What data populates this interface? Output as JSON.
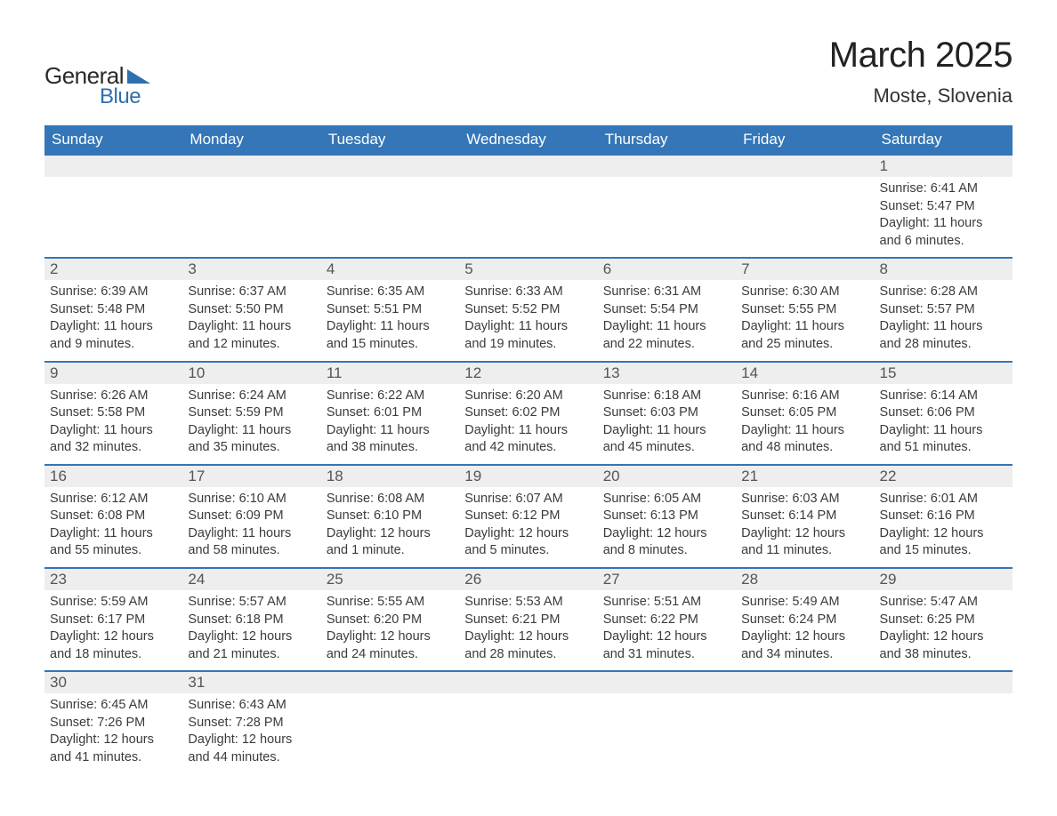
{
  "logo": {
    "text1": "General",
    "text2": "Blue"
  },
  "title": "March 2025",
  "location": "Moste, Slovenia",
  "header_bg": "#3476b7",
  "header_fg": "#ffffff",
  "daynum_bg": "#eeeeee",
  "border_color": "#3476b7",
  "text_color": "#3b3b3b",
  "font_family": "Arial, Helvetica, sans-serif",
  "day_headers": [
    "Sunday",
    "Monday",
    "Tuesday",
    "Wednesday",
    "Thursday",
    "Friday",
    "Saturday"
  ],
  "weeks": [
    [
      {
        "blank": true
      },
      {
        "blank": true
      },
      {
        "blank": true
      },
      {
        "blank": true
      },
      {
        "blank": true
      },
      {
        "blank": true
      },
      {
        "day": "1",
        "sunrise": "6:41 AM",
        "sunset": "5:47 PM",
        "daylight": "11 hours and 6 minutes."
      }
    ],
    [
      {
        "day": "2",
        "sunrise": "6:39 AM",
        "sunset": "5:48 PM",
        "daylight": "11 hours and 9 minutes."
      },
      {
        "day": "3",
        "sunrise": "6:37 AM",
        "sunset": "5:50 PM",
        "daylight": "11 hours and 12 minutes."
      },
      {
        "day": "4",
        "sunrise": "6:35 AM",
        "sunset": "5:51 PM",
        "daylight": "11 hours and 15 minutes."
      },
      {
        "day": "5",
        "sunrise": "6:33 AM",
        "sunset": "5:52 PM",
        "daylight": "11 hours and 19 minutes."
      },
      {
        "day": "6",
        "sunrise": "6:31 AM",
        "sunset": "5:54 PM",
        "daylight": "11 hours and 22 minutes."
      },
      {
        "day": "7",
        "sunrise": "6:30 AM",
        "sunset": "5:55 PM",
        "daylight": "11 hours and 25 minutes."
      },
      {
        "day": "8",
        "sunrise": "6:28 AM",
        "sunset": "5:57 PM",
        "daylight": "11 hours and 28 minutes."
      }
    ],
    [
      {
        "day": "9",
        "sunrise": "6:26 AM",
        "sunset": "5:58 PM",
        "daylight": "11 hours and 32 minutes."
      },
      {
        "day": "10",
        "sunrise": "6:24 AM",
        "sunset": "5:59 PM",
        "daylight": "11 hours and 35 minutes."
      },
      {
        "day": "11",
        "sunrise": "6:22 AM",
        "sunset": "6:01 PM",
        "daylight": "11 hours and 38 minutes."
      },
      {
        "day": "12",
        "sunrise": "6:20 AM",
        "sunset": "6:02 PM",
        "daylight": "11 hours and 42 minutes."
      },
      {
        "day": "13",
        "sunrise": "6:18 AM",
        "sunset": "6:03 PM",
        "daylight": "11 hours and 45 minutes."
      },
      {
        "day": "14",
        "sunrise": "6:16 AM",
        "sunset": "6:05 PM",
        "daylight": "11 hours and 48 minutes."
      },
      {
        "day": "15",
        "sunrise": "6:14 AM",
        "sunset": "6:06 PM",
        "daylight": "11 hours and 51 minutes."
      }
    ],
    [
      {
        "day": "16",
        "sunrise": "6:12 AM",
        "sunset": "6:08 PM",
        "daylight": "11 hours and 55 minutes."
      },
      {
        "day": "17",
        "sunrise": "6:10 AM",
        "sunset": "6:09 PM",
        "daylight": "11 hours and 58 minutes."
      },
      {
        "day": "18",
        "sunrise": "6:08 AM",
        "sunset": "6:10 PM",
        "daylight": "12 hours and 1 minute."
      },
      {
        "day": "19",
        "sunrise": "6:07 AM",
        "sunset": "6:12 PM",
        "daylight": "12 hours and 5 minutes."
      },
      {
        "day": "20",
        "sunrise": "6:05 AM",
        "sunset": "6:13 PM",
        "daylight": "12 hours and 8 minutes."
      },
      {
        "day": "21",
        "sunrise": "6:03 AM",
        "sunset": "6:14 PM",
        "daylight": "12 hours and 11 minutes."
      },
      {
        "day": "22",
        "sunrise": "6:01 AM",
        "sunset": "6:16 PM",
        "daylight": "12 hours and 15 minutes."
      }
    ],
    [
      {
        "day": "23",
        "sunrise": "5:59 AM",
        "sunset": "6:17 PM",
        "daylight": "12 hours and 18 minutes."
      },
      {
        "day": "24",
        "sunrise": "5:57 AM",
        "sunset": "6:18 PM",
        "daylight": "12 hours and 21 minutes."
      },
      {
        "day": "25",
        "sunrise": "5:55 AM",
        "sunset": "6:20 PM",
        "daylight": "12 hours and 24 minutes."
      },
      {
        "day": "26",
        "sunrise": "5:53 AM",
        "sunset": "6:21 PM",
        "daylight": "12 hours and 28 minutes."
      },
      {
        "day": "27",
        "sunrise": "5:51 AM",
        "sunset": "6:22 PM",
        "daylight": "12 hours and 31 minutes."
      },
      {
        "day": "28",
        "sunrise": "5:49 AM",
        "sunset": "6:24 PM",
        "daylight": "12 hours and 34 minutes."
      },
      {
        "day": "29",
        "sunrise": "5:47 AM",
        "sunset": "6:25 PM",
        "daylight": "12 hours and 38 minutes."
      }
    ],
    [
      {
        "day": "30",
        "sunrise": "6:45 AM",
        "sunset": "7:26 PM",
        "daylight": "12 hours and 41 minutes."
      },
      {
        "day": "31",
        "sunrise": "6:43 AM",
        "sunset": "7:28 PM",
        "daylight": "12 hours and 44 minutes."
      },
      {
        "blank": true
      },
      {
        "blank": true
      },
      {
        "blank": true
      },
      {
        "blank": true
      },
      {
        "blank": true
      }
    ]
  ],
  "labels": {
    "sunrise": "Sunrise:",
    "sunset": "Sunset:",
    "daylight": "Daylight:"
  }
}
